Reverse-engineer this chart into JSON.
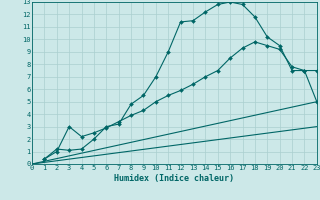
{
  "xlabel": "Humidex (Indice chaleur)",
  "xlim": [
    0,
    23
  ],
  "ylim": [
    0,
    13
  ],
  "xticks": [
    0,
    1,
    2,
    3,
    4,
    5,
    6,
    7,
    8,
    9,
    10,
    11,
    12,
    13,
    14,
    15,
    16,
    17,
    18,
    19,
    20,
    21,
    22,
    23
  ],
  "yticks": [
    0,
    1,
    2,
    3,
    4,
    5,
    6,
    7,
    8,
    9,
    10,
    11,
    12,
    13
  ],
  "bg_color": "#cce8e8",
  "grid_color": "#aacfcf",
  "line_color": "#006666",
  "line1_x": [
    1,
    2,
    3,
    4,
    5,
    6,
    7,
    8,
    9,
    10,
    11,
    12,
    13,
    14,
    15,
    16,
    17,
    18,
    19,
    20,
    21,
    22,
    23
  ],
  "line1_y": [
    0.4,
    1.2,
    1.1,
    1.2,
    2.0,
    3.0,
    3.2,
    4.8,
    5.5,
    7.0,
    9.0,
    11.4,
    11.5,
    12.2,
    12.8,
    13.0,
    12.8,
    11.8,
    10.2,
    9.5,
    7.5,
    7.5,
    7.5
  ],
  "line2_x": [
    1,
    2,
    3,
    4,
    5,
    6,
    7,
    8,
    9,
    10,
    11,
    12,
    13,
    14,
    15,
    16,
    17,
    18,
    19,
    20,
    21,
    22,
    23
  ],
  "line2_y": [
    0.4,
    1.0,
    3.0,
    2.2,
    2.5,
    2.9,
    3.4,
    3.9,
    4.3,
    5.0,
    5.5,
    5.9,
    6.4,
    7.0,
    7.5,
    8.5,
    9.3,
    9.8,
    9.5,
    9.2,
    7.8,
    7.5,
    5.0
  ],
  "line3_x": [
    0,
    23
  ],
  "line3_y": [
    0.0,
    5.0
  ],
  "line4_x": [
    0,
    23
  ],
  "line4_y": [
    0.0,
    3.0
  ],
  "marker": "D",
  "markersize": 2.0,
  "linewidth": 0.8,
  "tick_fontsize": 5.0,
  "xlabel_fontsize": 6.0
}
